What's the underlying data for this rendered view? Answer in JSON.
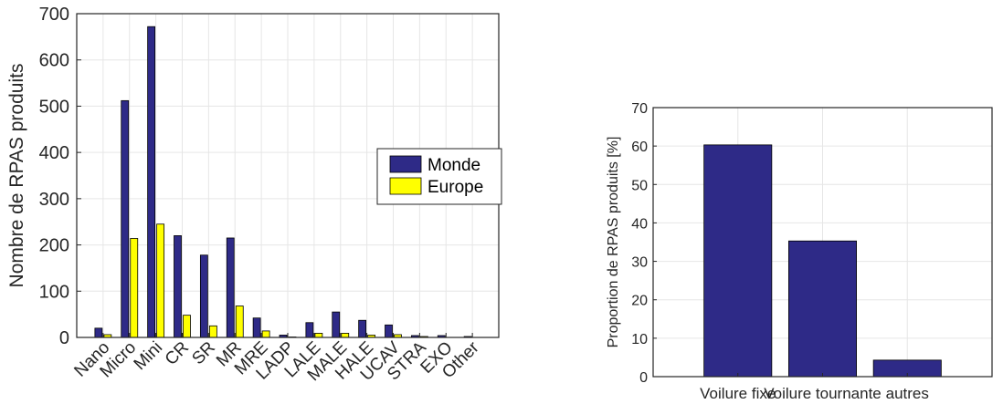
{
  "colors": {
    "monde": "#2e2a87",
    "europe": "#ffff00",
    "grid": "#e6e6e6",
    "axis": "#262626"
  },
  "chart_data": [
    {
      "type": "bar",
      "title": "",
      "xlabel": "",
      "ylabel": "Nombre de RPAS produits",
      "ylim": [
        0,
        700
      ],
      "yticks": [
        0,
        100,
        200,
        300,
        400,
        500,
        600,
        700
      ],
      "grid": true,
      "legend": "center-right",
      "categories": [
        "Nano",
        "Micro",
        "Mini",
        "CR",
        "SR",
        "MR",
        "MRE",
        "LADP",
        "LALE",
        "MALE",
        "HALE",
        "UCAV",
        "STRA",
        "EXO",
        "Other"
      ],
      "series": [
        {
          "name": "Monde",
          "values": [
            20,
            512,
            672,
            220,
            178,
            215,
            42,
            5,
            32,
            55,
            37,
            27,
            4,
            4,
            2
          ]
        },
        {
          "name": "Europe",
          "values": [
            6,
            214,
            245,
            48,
            25,
            68,
            14,
            1,
            9,
            9,
            5,
            6,
            2,
            0,
            0
          ]
        }
      ]
    },
    {
      "type": "bar",
      "title": "",
      "xlabel": "",
      "ylabel": "Proportion de RPAS produits [%]",
      "ylim": [
        0,
        70
      ],
      "yticks": [
        0,
        10,
        20,
        30,
        40,
        50,
        60,
        70
      ],
      "grid": true,
      "categories": [
        "Voilure fixe",
        "Voilure tournante",
        "autres"
      ],
      "values": [
        60.3,
        35.3,
        4.3
      ]
    }
  ]
}
